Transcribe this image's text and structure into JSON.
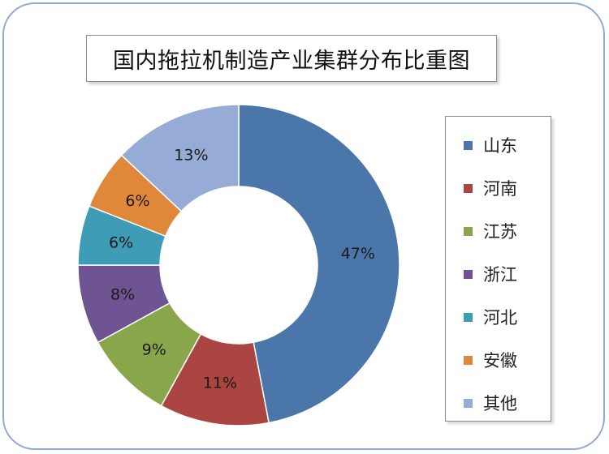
{
  "chart_data": {
    "type": "pie",
    "variant": "donut",
    "title": "国内拖拉机制造产业集群分布比重图",
    "categories": [
      "山东",
      "河南",
      "江苏",
      "浙江",
      "河北",
      "安徽",
      "其他"
    ],
    "values": [
      47,
      11,
      9,
      8,
      6,
      6,
      13
    ],
    "labels": [
      "47%",
      "11%",
      "9%",
      "8%",
      "6%",
      "6%",
      "13%"
    ],
    "colors": [
      "#4a76aa",
      "#ab4542",
      "#8aa64a",
      "#6e5493",
      "#3f9cb6",
      "#e0883a",
      "#96acd6"
    ],
    "legend_position": "right"
  }
}
